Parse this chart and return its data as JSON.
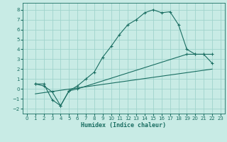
{
  "xlabel": "Humidex (Indice chaleur)",
  "bg_color": "#c8ebe5",
  "grid_color": "#a0d4cc",
  "line_color": "#1a6e62",
  "xlim": [
    -0.5,
    23.5
  ],
  "ylim": [
    -2.5,
    8.7
  ],
  "xticks": [
    0,
    1,
    2,
    3,
    4,
    5,
    6,
    7,
    8,
    9,
    10,
    11,
    12,
    13,
    14,
    15,
    16,
    17,
    18,
    19,
    20,
    21,
    22,
    23
  ],
  "yticks": [
    -2,
    -1,
    0,
    1,
    2,
    3,
    4,
    5,
    6,
    7,
    8
  ],
  "curve1_x": [
    1,
    2,
    3,
    4,
    5,
    6,
    7,
    8,
    9,
    10,
    11,
    12,
    13,
    14,
    15,
    16,
    17,
    18,
    19,
    20,
    21,
    22
  ],
  "curve1_y": [
    0.5,
    0.5,
    -1.1,
    -1.7,
    -0.2,
    0.3,
    1.0,
    1.7,
    3.2,
    4.3,
    5.5,
    6.5,
    7.0,
    7.7,
    8.0,
    7.7,
    7.8,
    6.5,
    4.0,
    3.5,
    3.5,
    2.6
  ],
  "curve2_x": [
    1,
    2,
    3,
    4,
    5,
    6,
    19,
    20,
    21,
    22
  ],
  "curve2_y": [
    0.5,
    0.3,
    -0.3,
    -1.7,
    -0.2,
    0.0,
    3.5,
    3.5,
    3.5,
    3.5
  ],
  "curve3_x": [
    1,
    22
  ],
  "curve3_y": [
    -0.5,
    2.0
  ]
}
